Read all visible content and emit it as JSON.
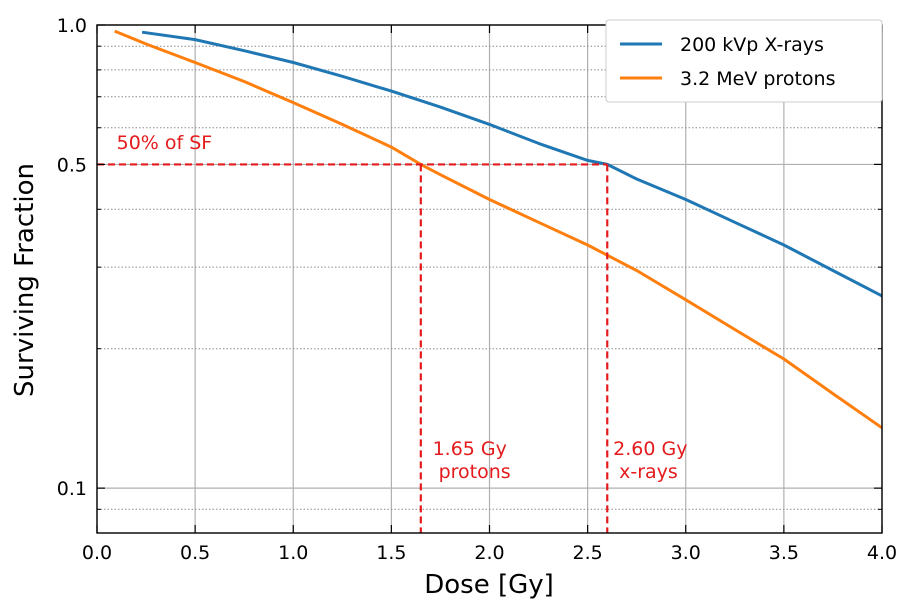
{
  "chart_data": {
    "type": "line",
    "xlabel": "Dose [Gy]",
    "ylabel": "Surviving Fraction",
    "xlim": [
      0.0,
      4.0
    ],
    "ylim": [
      0.08,
      1.0
    ],
    "yscale": "log",
    "grid": true,
    "legend_position": "top-right",
    "x_ticks": [
      0.0,
      0.5,
      1.0,
      1.5,
      2.0,
      2.5,
      3.0,
      3.5,
      4.0
    ],
    "x_tick_labels": [
      "0.0",
      "0.5",
      "1.0",
      "1.5",
      "2.0",
      "2.5",
      "3.0",
      "3.5",
      "4.0"
    ],
    "y_ticks": [
      0.1,
      0.5,
      1.0
    ],
    "y_tick_labels": [
      "0.1",
      "0.5",
      "1.0"
    ],
    "y_minor_ticks": [
      0.09,
      0.2,
      0.3,
      0.4,
      0.6,
      0.7,
      0.8,
      0.9
    ],
    "series": [
      {
        "name": "200 kVp X-rays",
        "color": "#1f77b4",
        "x": [
          0.23,
          0.5,
          0.75,
          1.0,
          1.25,
          1.5,
          1.75,
          2.0,
          2.25,
          2.5,
          2.6,
          2.75,
          3.0,
          3.25,
          3.5,
          3.75,
          4.0
        ],
        "y": [
          0.965,
          0.93,
          0.88,
          0.83,
          0.775,
          0.72,
          0.665,
          0.61,
          0.555,
          0.51,
          0.5,
          0.465,
          0.42,
          0.375,
          0.335,
          0.295,
          0.26
        ]
      },
      {
        "name": "3.2 MeV protons",
        "color": "#ff7f0e",
        "x": [
          0.09,
          0.25,
          0.5,
          0.75,
          1.0,
          1.25,
          1.5,
          1.65,
          1.75,
          2.0,
          2.25,
          2.5,
          2.75,
          3.0,
          3.25,
          3.5,
          3.75,
          4.0
        ],
        "y": [
          0.97,
          0.91,
          0.83,
          0.755,
          0.68,
          0.61,
          0.545,
          0.5,
          0.475,
          0.42,
          0.375,
          0.335,
          0.295,
          0.255,
          0.22,
          0.19,
          0.16,
          0.135
        ]
      }
    ],
    "reference_lines": {
      "color": "#e41a1c",
      "y": 0.5,
      "x_values": [
        1.65,
        2.6
      ]
    },
    "annotations": [
      {
        "text": "50% of SF",
        "x": 0.1,
        "y": 0.54
      },
      {
        "lines": [
          "1.65 Gy",
          "protons"
        ],
        "x": 1.71,
        "y": 0.118
      },
      {
        "lines": [
          "2.60 Gy",
          "x-rays"
        ],
        "x": 2.63,
        "y": 0.118
      }
    ]
  }
}
